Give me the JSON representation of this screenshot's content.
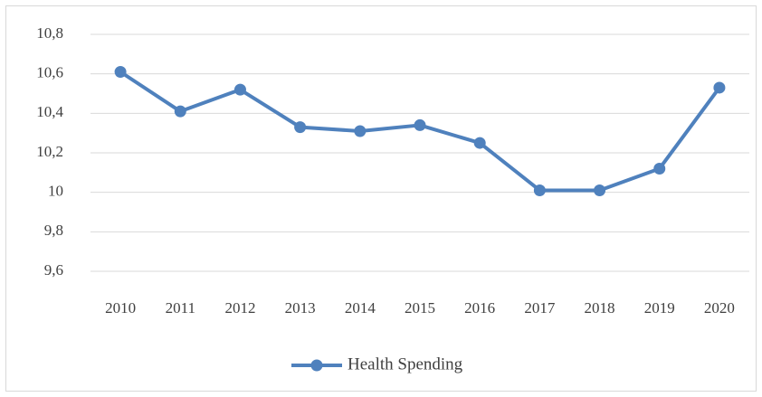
{
  "chart_data": {
    "type": "line",
    "categories": [
      "2010",
      "2011",
      "2012",
      "2013",
      "2014",
      "2015",
      "2016",
      "2017",
      "2018",
      "2019",
      "2020"
    ],
    "series": [
      {
        "name": "Health Spending",
        "color": "#4f81bd",
        "values": [
          10.61,
          10.41,
          10.52,
          10.33,
          10.31,
          10.34,
          10.25,
          10.01,
          10.01,
          10.12,
          10.53
        ]
      }
    ],
    "ylim": [
      9.6,
      10.8
    ],
    "yticks": [
      {
        "value": 9.6,
        "label": "9,6"
      },
      {
        "value": 9.8,
        "label": "9,8"
      },
      10,
      {
        "value": 10.2,
        "label": "10,2"
      },
      {
        "value": 10.4,
        "label": "10,4"
      },
      {
        "value": 10.6,
        "label": "10,6"
      },
      {
        "value": 10.8,
        "label": "10,8"
      }
    ],
    "grid": true,
    "legend": "bottom"
  }
}
